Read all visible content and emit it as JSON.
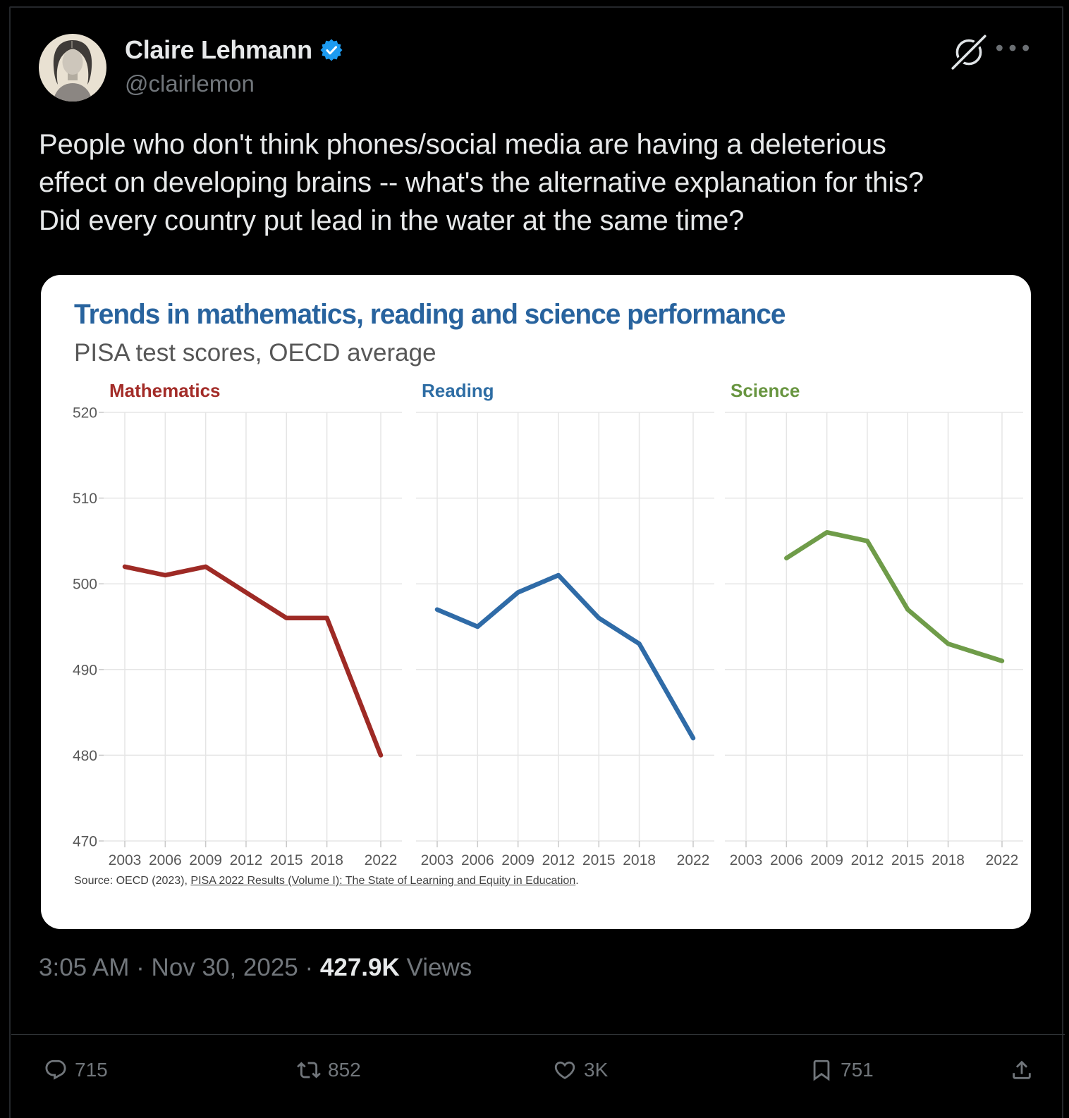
{
  "colors": {
    "background": "#000000",
    "text": "#e7e9ea",
    "muted": "#71767b",
    "verified_blue": "#1d9bf0",
    "card_bg": "#ffffff",
    "chart_title_blue": "#28639e",
    "math_red": "#9e2a25",
    "reading_blue": "#2f6ba7",
    "science_green": "#6f9c49"
  },
  "icons": {
    "grok": "grok-slash-circle",
    "more": "ellipsis",
    "verified": "blue-checkmark-seal",
    "reply": "speech-bubble",
    "repost": "retweet-arrows",
    "like": "heart-outline",
    "bookmark": "bookmark-outline",
    "share": "arrow-up-from-tray"
  },
  "user": {
    "name": "Claire Lehmann",
    "handle": "@clairlemon",
    "verified": true
  },
  "tweet": {
    "text": "People who don't think phones/social media are having a deleterious effect on developing brains -- what's the alternative explanation for this? Did every country put lead in the water at the same time?",
    "lines": [
      "People who don't think phones/social media are having a deleterious",
      "effect on developing brains -- what's the alternative explanation for this?",
      "Did every country put lead in the water at the same time?"
    ]
  },
  "card": {
    "title": "Trends in mathematics, reading and science performance",
    "subtitle": "PISA test scores, OECD average",
    "source_prefix": "Source: OECD (2023), ",
    "source_link": "PISA 2022 Results (Volume I): The State of Learning and Equity in Education",
    "source_suffix": "."
  },
  "chart_data": [
    {
      "type": "line",
      "title": "Mathematics",
      "color": "#9e2a25",
      "title_color": "#a32c28",
      "x": [
        2003,
        2006,
        2009,
        2012,
        2015,
        2018,
        2022
      ],
      "values": [
        502,
        501,
        502,
        499,
        496,
        496,
        480
      ],
      "xticks": [
        2003,
        2006,
        2009,
        2012,
        2015,
        2018,
        2022
      ],
      "yticks": [
        470,
        480,
        490,
        500,
        510,
        520
      ],
      "ylim": [
        470,
        520
      ],
      "xlim": [
        2001.4,
        2023.6
      ],
      "grid": true,
      "legend": "none"
    },
    {
      "type": "line",
      "title": "Reading",
      "color": "#2f6ba7",
      "title_color": "#2e6da4",
      "x": [
        2003,
        2006,
        2009,
        2012,
        2015,
        2018,
        2022
      ],
      "values": [
        497,
        495,
        499,
        501,
        496,
        493,
        482
      ],
      "xticks": [
        2003,
        2006,
        2009,
        2012,
        2015,
        2018,
        2022
      ],
      "yticks": [
        470,
        480,
        490,
        500,
        510,
        520
      ],
      "ylim": [
        470,
        520
      ],
      "xlim": [
        2001.4,
        2023.6
      ],
      "grid": true,
      "legend": "none"
    },
    {
      "type": "line",
      "title": "Science",
      "color": "#6f9c49",
      "title_color": "#689540",
      "x": [
        2006,
        2009,
        2012,
        2015,
        2018,
        2022
      ],
      "values": [
        503,
        506,
        505,
        497,
        493,
        491
      ],
      "xticks": [
        2003,
        2006,
        2009,
        2012,
        2015,
        2018,
        2022
      ],
      "yticks": [
        470,
        480,
        490,
        500,
        510,
        520
      ],
      "ylim": [
        470,
        520
      ],
      "xlim": [
        2001.4,
        2023.6
      ],
      "grid": true,
      "legend": "none"
    }
  ],
  "meta": {
    "time": "3:05 AM",
    "separator": "·",
    "date": "Nov 30, 2025",
    "views_count": "427.9K",
    "views_label": "Views"
  },
  "actions": {
    "reply_count": "715",
    "repost_count": "852",
    "like_count": "3K",
    "bookmark_count": "751"
  }
}
